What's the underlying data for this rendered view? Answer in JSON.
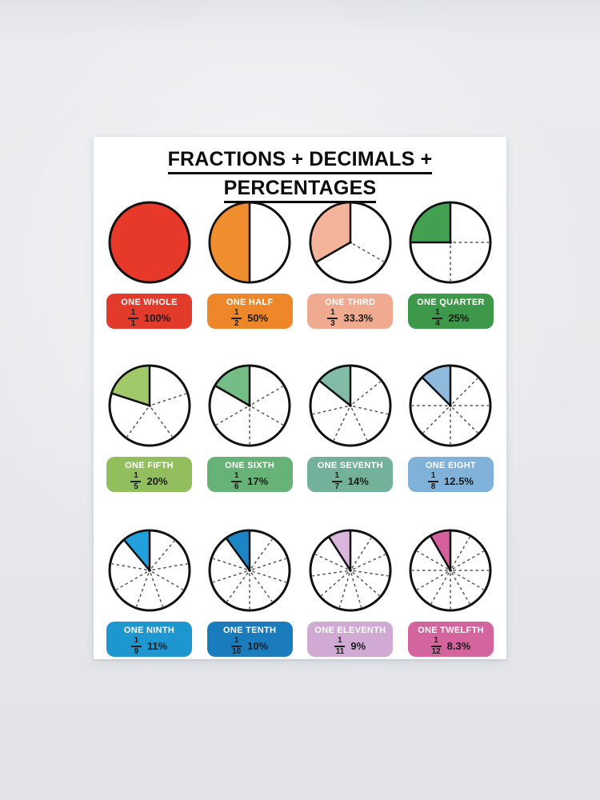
{
  "title": {
    "line1": "FRACTIONS + DECIMALS +",
    "line2": "PERCENTAGES"
  },
  "colors": {
    "poster_background": "#ffffff",
    "wall_background": "#e5e7ea",
    "circle_outline": "#111111",
    "dashed_divider": "#555555",
    "badge_name_text": "#ffffff",
    "badge_value_text": "#1b1b1b"
  },
  "chart_data": {
    "type": "pie",
    "title": "FRACTIONS + DECIMALS + PERCENTAGES",
    "layout": "grid 4 columns x 3 rows, one pie per fraction, label badge below each pie",
    "legend_position": "below each pie",
    "items": [
      {
        "name": "ONE WHOLE",
        "numerator": "1",
        "denominator": "1",
        "fraction_of": 1,
        "percent_label": "100%",
        "value_percent": 100,
        "slice_color": "#e6392a",
        "badge_color": "#e23a2b"
      },
      {
        "name": "ONE HALF",
        "numerator": "1",
        "denominator": "2",
        "fraction_of": 2,
        "percent_label": "50%",
        "value_percent": 50,
        "slice_color": "#ef8d2f",
        "badge_color": "#ee862a"
      },
      {
        "name": "ONE THIRD",
        "numerator": "1",
        "denominator": "3",
        "fraction_of": 3,
        "percent_label": "33.3%",
        "value_percent": 33.3,
        "slice_color": "#f4b39b",
        "badge_color": "#f0aa90"
      },
      {
        "name": "ONE QUARTER",
        "numerator": "1",
        "denominator": "4",
        "fraction_of": 4,
        "percent_label": "25%",
        "value_percent": 25,
        "slice_color": "#42a050",
        "badge_color": "#3d9849"
      },
      {
        "name": "ONE FIFTH",
        "numerator": "1",
        "denominator": "5",
        "fraction_of": 5,
        "percent_label": "20%",
        "value_percent": 20,
        "slice_color": "#a2c969",
        "badge_color": "#93be5d"
      },
      {
        "name": "ONE SIXTH",
        "numerator": "1",
        "denominator": "6",
        "fraction_of": 6,
        "percent_label": "17%",
        "value_percent": 17,
        "slice_color": "#74bd87",
        "badge_color": "#66b277"
      },
      {
        "name": "ONE SEVENTH",
        "numerator": "1",
        "denominator": "7",
        "fraction_of": 7,
        "percent_label": "14%",
        "value_percent": 14,
        "slice_color": "#82bca6",
        "badge_color": "#74b19b"
      },
      {
        "name": "ONE EIGHT",
        "numerator": "1",
        "denominator": "8",
        "fraction_of": 8,
        "percent_label": "12.5%",
        "value_percent": 12.5,
        "slice_color": "#8ebade",
        "badge_color": "#80b1d9"
      },
      {
        "name": "ONE NINTH",
        "numerator": "1",
        "denominator": "9",
        "fraction_of": 9,
        "percent_label": "11%",
        "value_percent": 11,
        "slice_color": "#22a0de",
        "badge_color": "#1e96d0"
      },
      {
        "name": "ONE TENTH",
        "numerator": "1",
        "denominator": "10",
        "fraction_of": 10,
        "percent_label": "10%",
        "value_percent": 10,
        "slice_color": "#1c85c6",
        "badge_color": "#1a7cbd"
      },
      {
        "name": "ONE ELEVENTH",
        "numerator": "1",
        "denominator": "11",
        "fraction_of": 11,
        "percent_label": "9%",
        "value_percent": 9,
        "slice_color": "#dab5dd",
        "badge_color": "#d0aad3"
      },
      {
        "name": "ONE TWELFTH",
        "numerator": "1",
        "denominator": "12",
        "fraction_of": 12,
        "percent_label": "8.3%",
        "value_percent": 8.3,
        "slice_color": "#d65f9e",
        "badge_color": "#d3649d"
      }
    ]
  }
}
